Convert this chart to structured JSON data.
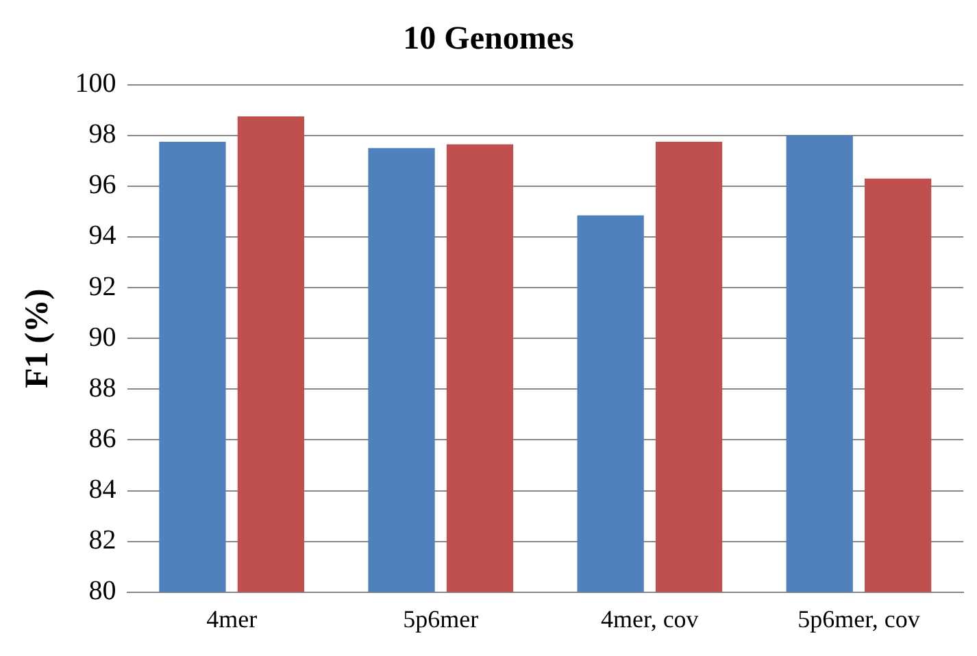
{
  "chart_data": {
    "type": "bar",
    "title": "10 Genomes",
    "ylabel": "F1 (%)",
    "categories": [
      "4mer",
      "5p6mer",
      "4mer, cov",
      "5p6mer, cov"
    ],
    "series": [
      {
        "color": "#4f81bd",
        "values": [
          97.75,
          97.5,
          94.85,
          98.0
        ]
      },
      {
        "color": "#c0504d",
        "values": [
          98.75,
          97.65,
          97.75,
          96.3
        ]
      }
    ],
    "ylim": [
      80,
      100
    ],
    "yticks": [
      80,
      82,
      84,
      86,
      88,
      90,
      92,
      94,
      96,
      98,
      100
    ],
    "grid": "y"
  }
}
